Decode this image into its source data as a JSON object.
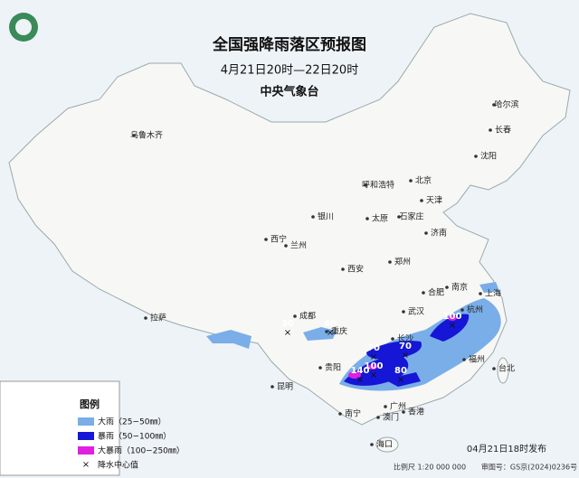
{
  "header": {
    "title": "全国强降雨落区预报图",
    "subtitle": "4月21日20时—22日20时",
    "issuer": "中央气象台"
  },
  "cities": [
    "乌鲁木齐",
    "哈尔滨",
    "长春",
    "沈阳",
    "北京",
    "天津",
    "呼和浩特",
    "银川",
    "太原",
    "石家庄",
    "济南",
    "西宁",
    "兰州",
    "西安",
    "郑州",
    "合肥",
    "南京",
    "上海",
    "杭州",
    "武汉",
    "成都",
    "重庆",
    "拉萨",
    "长沙",
    "贵阳",
    "福州",
    "台北",
    "昆明",
    "南宁",
    "广州",
    "澳门",
    "香港",
    "海口"
  ],
  "rain_centers": [
    30,
    40,
    100,
    70,
    70,
    100,
    140,
    80
  ],
  "legend": {
    "title": "图例",
    "items": [
      "大雨（25−50㎜）",
      "暴雨（50−100㎜）",
      "大暴雨（100−250㎜）",
      "降水中心值"
    ]
  },
  "footer": {
    "issued": "04月21日18时发布",
    "scale": "比例尺 1:20 000 000",
    "approval": "审图号：GS京(2024)0236号"
  }
}
